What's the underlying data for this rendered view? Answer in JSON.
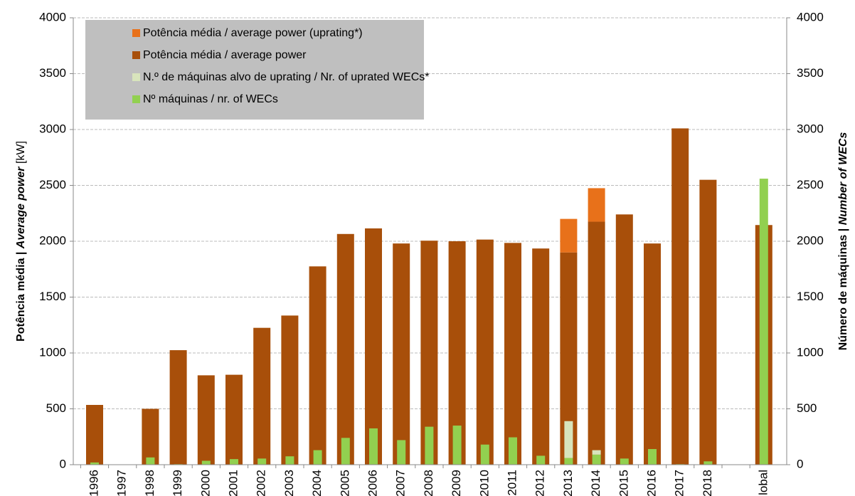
{
  "chart_data": {
    "type": "bar",
    "y_label": [
      "Potência média | ",
      "Average power",
      " [kW]"
    ],
    "y2_label": [
      "Número de máquinas | ",
      "Number of WECs"
    ],
    "categories": [
      "1996",
      "1997",
      "1998",
      "1999",
      "2000",
      "2001",
      "2002",
      "2003",
      "2004",
      "2005",
      "2006",
      "2007",
      "2008",
      "2009",
      "2010",
      "2011",
      "2012",
      "2013",
      "2014",
      "2015",
      "2016",
      "2017",
      "2018",
      null,
      "Global"
    ],
    "series": [
      {
        "name": "Potência média / average power (uprating*)",
        "color": "#e8711a",
        "values": [
          null,
          null,
          null,
          null,
          null,
          null,
          null,
          null,
          null,
          null,
          null,
          null,
          null,
          null,
          null,
          null,
          null,
          300,
          300,
          null,
          null,
          null,
          null,
          null,
          null
        ]
      },
      {
        "name": "Potência média / average power",
        "color": "#a84f0a",
        "values": [
          535,
          null,
          500,
          1025,
          800,
          805,
          1225,
          1335,
          1775,
          2065,
          2115,
          1980,
          2005,
          2000,
          2015,
          1985,
          1935,
          1900,
          2175,
          2240,
          1980,
          3010,
          2550,
          null,
          2145
        ]
      },
      {
        "name": "N.º de máquinas alvo de uprating / Nr. of uprated WECs*",
        "color": "#d8e4bc",
        "axis": "y2",
        "values": [
          null,
          null,
          null,
          null,
          null,
          null,
          null,
          null,
          null,
          null,
          null,
          null,
          null,
          null,
          null,
          null,
          null,
          330,
          40,
          null,
          null,
          null,
          null,
          null,
          null
        ]
      },
      {
        "name": "Nº máquinas / nr. of WECs",
        "color": "#92d050",
        "axis": "y2",
        "values": [
          20,
          null,
          65,
          5,
          35,
          50,
          55,
          75,
          130,
          240,
          325,
          220,
          340,
          350,
          180,
          245,
          80,
          60,
          90,
          55,
          140,
          5,
          30,
          null,
          2560
        ]
      }
    ],
    "ylim": [
      0,
      4000
    ],
    "yticks": [
      0,
      500,
      1000,
      1500,
      2000,
      2500,
      3000,
      3500,
      4000
    ],
    "y2lim": [
      0,
      4000
    ],
    "y2ticks": [
      0,
      500,
      1000,
      1500,
      2000,
      2500,
      3000,
      3500,
      4000
    ],
    "grid": true
  }
}
